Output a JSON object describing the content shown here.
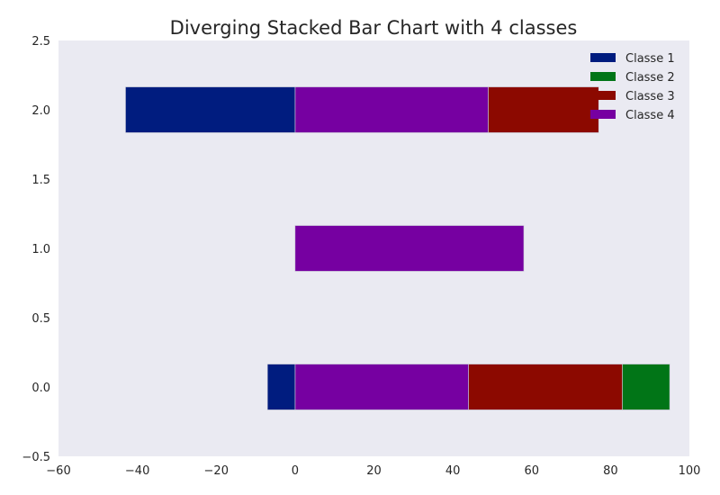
{
  "chart_data": {
    "type": "bar",
    "orientation": "horizontal",
    "stacking": "diverging",
    "title": "Diverging Stacked Bar Chart with 4 classes",
    "xlabel": "",
    "ylabel": "",
    "xlim": [
      -60,
      100
    ],
    "ylim": [
      -0.5,
      2.5
    ],
    "xticks": [
      -60,
      -40,
      -20,
      0,
      20,
      40,
      60,
      80,
      100
    ],
    "yticks": [
      -0.5,
      0.0,
      0.5,
      1.0,
      1.5,
      2.0,
      2.5
    ],
    "xtick_labels": [
      "−60",
      "−40",
      "−20",
      "0",
      "20",
      "40",
      "60",
      "80",
      "100"
    ],
    "ytick_labels": [
      "−0.5",
      "0.0",
      "0.5",
      "1.0",
      "1.5",
      "2.0",
      "2.5"
    ],
    "categories": [
      0,
      1,
      2
    ],
    "bar_height": 0.33,
    "grid": false,
    "background": "#eaeaf2",
    "legend_position": "top-right",
    "series": [
      {
        "name": "Classe 1",
        "color": "#001c7f",
        "values": [
          -7,
          0,
          -43
        ]
      },
      {
        "name": "Classe 2",
        "color": "#017517",
        "values": [
          12,
          0,
          0
        ]
      },
      {
        "name": "Classe 3",
        "color": "#8c0900",
        "values": [
          39,
          0,
          28
        ]
      },
      {
        "name": "Classe 4",
        "color": "#7600a1",
        "values": [
          44,
          58,
          49
        ]
      }
    ],
    "positive_stack_order": [
      "Classe 4",
      "Classe 3",
      "Classe 2"
    ],
    "negative_stack_order": [
      "Classe 1"
    ]
  }
}
